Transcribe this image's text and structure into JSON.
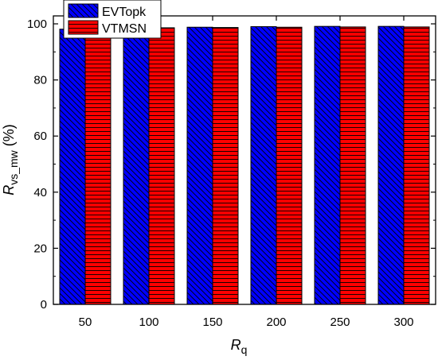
{
  "chart_data": {
    "type": "bar",
    "categories": [
      "50",
      "100",
      "150",
      "200",
      "250",
      "300"
    ],
    "series": [
      {
        "name": "EVTopk",
        "values": [
          98.1,
          98.5,
          98.8,
          99.0,
          99.1,
          99.1
        ],
        "color": "#0000ff",
        "pattern": "diagonal-hatch"
      },
      {
        "name": "VTMSN",
        "values": [
          98.3,
          98.6,
          98.7,
          98.8,
          98.9,
          98.9
        ],
        "color": "#ff0000",
        "pattern": "horizontal-hatch"
      }
    ],
    "xlabel": {
      "main": "R",
      "sub": "q"
    },
    "ylabel": {
      "main": "R",
      "sub": "vs_mw",
      "suffix": " (%)"
    },
    "ylim": [
      0,
      100
    ],
    "yticks": [
      0,
      20,
      40,
      60,
      80,
      100
    ],
    "grid": false,
    "legend_position": "top-left"
  }
}
